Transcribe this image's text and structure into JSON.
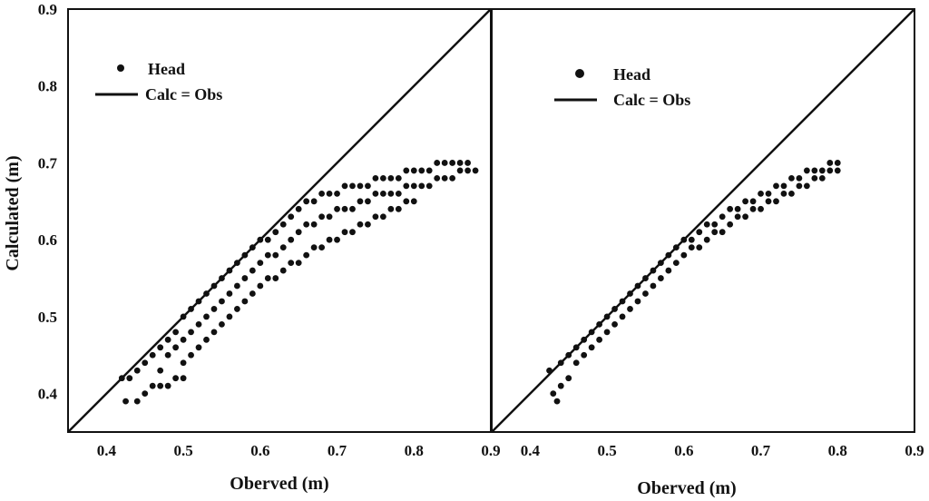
{
  "chart_data": [
    {
      "type": "scatter",
      "panel": "left",
      "xlabel": "Oberved (m)",
      "ylabel": "Calculated (m)",
      "xlim": [
        0.35,
        0.9
      ],
      "ylim": [
        0.35,
        0.9
      ],
      "xticks": [
        "0.4",
        "0.5",
        "0.6",
        "0.7",
        "0.8",
        "0.9"
      ],
      "yticks": [
        "0.4",
        "0.5",
        "0.6",
        "0.7",
        "0.8",
        "0.9"
      ],
      "legend": {
        "position": "top-left",
        "entries": [
          "Head",
          "Calc = Obs"
        ]
      },
      "series": [
        {
          "name": "Head",
          "kind": "points",
          "color": "#111111",
          "points": [
            [
              0.42,
              0.42
            ],
            [
              0.425,
              0.39
            ],
            [
              0.43,
              0.42
            ],
            [
              0.44,
              0.43
            ],
            [
              0.44,
              0.39
            ],
            [
              0.45,
              0.44
            ],
            [
              0.45,
              0.4
            ],
            [
              0.46,
              0.45
            ],
            [
              0.46,
              0.41
            ],
            [
              0.47,
              0.46
            ],
            [
              0.47,
              0.43
            ],
            [
              0.47,
              0.41
            ],
            [
              0.48,
              0.47
            ],
            [
              0.48,
              0.45
            ],
            [
              0.48,
              0.41
            ],
            [
              0.49,
              0.48
            ],
            [
              0.49,
              0.46
            ],
            [
              0.49,
              0.42
            ],
            [
              0.5,
              0.5
            ],
            [
              0.5,
              0.47
            ],
            [
              0.5,
              0.44
            ],
            [
              0.5,
              0.42
            ],
            [
              0.51,
              0.51
            ],
            [
              0.51,
              0.48
            ],
            [
              0.51,
              0.45
            ],
            [
              0.52,
              0.52
            ],
            [
              0.52,
              0.49
            ],
            [
              0.52,
              0.46
            ],
            [
              0.53,
              0.53
            ],
            [
              0.53,
              0.5
            ],
            [
              0.53,
              0.47
            ],
            [
              0.54,
              0.54
            ],
            [
              0.54,
              0.51
            ],
            [
              0.54,
              0.48
            ],
            [
              0.55,
              0.55
            ],
            [
              0.55,
              0.52
            ],
            [
              0.55,
              0.49
            ],
            [
              0.56,
              0.56
            ],
            [
              0.56,
              0.53
            ],
            [
              0.56,
              0.5
            ],
            [
              0.57,
              0.57
            ],
            [
              0.57,
              0.54
            ],
            [
              0.57,
              0.51
            ],
            [
              0.58,
              0.58
            ],
            [
              0.58,
              0.55
            ],
            [
              0.58,
              0.52
            ],
            [
              0.59,
              0.59
            ],
            [
              0.59,
              0.56
            ],
            [
              0.59,
              0.53
            ],
            [
              0.6,
              0.6
            ],
            [
              0.6,
              0.57
            ],
            [
              0.6,
              0.54
            ],
            [
              0.61,
              0.6
            ],
            [
              0.61,
              0.58
            ],
            [
              0.61,
              0.55
            ],
            [
              0.62,
              0.61
            ],
            [
              0.62,
              0.58
            ],
            [
              0.62,
              0.55
            ],
            [
              0.63,
              0.62
            ],
            [
              0.63,
              0.59
            ],
            [
              0.63,
              0.56
            ],
            [
              0.64,
              0.63
            ],
            [
              0.64,
              0.6
            ],
            [
              0.64,
              0.57
            ],
            [
              0.65,
              0.64
            ],
            [
              0.65,
              0.61
            ],
            [
              0.65,
              0.57
            ],
            [
              0.66,
              0.65
            ],
            [
              0.66,
              0.62
            ],
            [
              0.66,
              0.58
            ],
            [
              0.67,
              0.65
            ],
            [
              0.67,
              0.62
            ],
            [
              0.67,
              0.59
            ],
            [
              0.68,
              0.66
            ],
            [
              0.68,
              0.63
            ],
            [
              0.68,
              0.59
            ],
            [
              0.69,
              0.66
            ],
            [
              0.69,
              0.63
            ],
            [
              0.69,
              0.6
            ],
            [
              0.7,
              0.66
            ],
            [
              0.7,
              0.64
            ],
            [
              0.7,
              0.6
            ],
            [
              0.71,
              0.67
            ],
            [
              0.71,
              0.64
            ],
            [
              0.71,
              0.61
            ],
            [
              0.72,
              0.67
            ],
            [
              0.72,
              0.64
            ],
            [
              0.72,
              0.61
            ],
            [
              0.73,
              0.67
            ],
            [
              0.73,
              0.65
            ],
            [
              0.73,
              0.62
            ],
            [
              0.74,
              0.67
            ],
            [
              0.74,
              0.65
            ],
            [
              0.74,
              0.62
            ],
            [
              0.75,
              0.68
            ],
            [
              0.75,
              0.66
            ],
            [
              0.75,
              0.63
            ],
            [
              0.76,
              0.68
            ],
            [
              0.76,
              0.66
            ],
            [
              0.76,
              0.63
            ],
            [
              0.77,
              0.68
            ],
            [
              0.77,
              0.66
            ],
            [
              0.77,
              0.64
            ],
            [
              0.78,
              0.68
            ],
            [
              0.78,
              0.66
            ],
            [
              0.78,
              0.64
            ],
            [
              0.79,
              0.69
            ],
            [
              0.79,
              0.67
            ],
            [
              0.79,
              0.65
            ],
            [
              0.8,
              0.69
            ],
            [
              0.8,
              0.67
            ],
            [
              0.8,
              0.65
            ],
            [
              0.81,
              0.69
            ],
            [
              0.81,
              0.67
            ],
            [
              0.82,
              0.69
            ],
            [
              0.82,
              0.67
            ],
            [
              0.83,
              0.7
            ],
            [
              0.83,
              0.68
            ],
            [
              0.84,
              0.7
            ],
            [
              0.84,
              0.68
            ],
            [
              0.85,
              0.7
            ],
            [
              0.85,
              0.68
            ],
            [
              0.86,
              0.7
            ],
            [
              0.86,
              0.69
            ],
            [
              0.87,
              0.7
            ],
            [
              0.87,
              0.69
            ],
            [
              0.88,
              0.69
            ]
          ]
        },
        {
          "name": "Calc = Obs",
          "kind": "line",
          "color": "#111111",
          "points": [
            [
              0.35,
              0.35
            ],
            [
              0.9,
              0.9
            ]
          ]
        }
      ]
    },
    {
      "type": "scatter",
      "panel": "right",
      "xlabel": "Oberved (m)",
      "ylabel": "",
      "xlim": [
        0.35,
        0.9
      ],
      "ylim": [
        0.35,
        0.9
      ],
      "xticks": [
        "0.4",
        "0.5",
        "0.6",
        "0.7",
        "0.8",
        "0.9"
      ],
      "legend": {
        "position": "top-left",
        "entries": [
          "Head",
          "Calc = Obs"
        ]
      },
      "series": [
        {
          "name": "Head",
          "kind": "points",
          "color": "#111111",
          "points": [
            [
              0.425,
              0.43
            ],
            [
              0.43,
              0.4
            ],
            [
              0.435,
              0.39
            ],
            [
              0.44,
              0.44
            ],
            [
              0.44,
              0.41
            ],
            [
              0.45,
              0.45
            ],
            [
              0.45,
              0.42
            ],
            [
              0.46,
              0.46
            ],
            [
              0.46,
              0.44
            ],
            [
              0.47,
              0.47
            ],
            [
              0.47,
              0.45
            ],
            [
              0.48,
              0.48
            ],
            [
              0.48,
              0.46
            ],
            [
              0.49,
              0.49
            ],
            [
              0.49,
              0.47
            ],
            [
              0.5,
              0.5
            ],
            [
              0.5,
              0.48
            ],
            [
              0.51,
              0.51
            ],
            [
              0.51,
              0.49
            ],
            [
              0.52,
              0.52
            ],
            [
              0.52,
              0.5
            ],
            [
              0.53,
              0.53
            ],
            [
              0.53,
              0.51
            ],
            [
              0.54,
              0.54
            ],
            [
              0.54,
              0.52
            ],
            [
              0.55,
              0.55
            ],
            [
              0.55,
              0.53
            ],
            [
              0.56,
              0.56
            ],
            [
              0.56,
              0.54
            ],
            [
              0.57,
              0.57
            ],
            [
              0.57,
              0.55
            ],
            [
              0.58,
              0.58
            ],
            [
              0.58,
              0.56
            ],
            [
              0.59,
              0.59
            ],
            [
              0.59,
              0.57
            ],
            [
              0.6,
              0.6
            ],
            [
              0.6,
              0.58
            ],
            [
              0.61,
              0.6
            ],
            [
              0.61,
              0.59
            ],
            [
              0.62,
              0.61
            ],
            [
              0.62,
              0.59
            ],
            [
              0.63,
              0.62
            ],
            [
              0.63,
              0.6
            ],
            [
              0.64,
              0.62
            ],
            [
              0.64,
              0.61
            ],
            [
              0.65,
              0.63
            ],
            [
              0.65,
              0.61
            ],
            [
              0.66,
              0.64
            ],
            [
              0.66,
              0.62
            ],
            [
              0.67,
              0.64
            ],
            [
              0.67,
              0.63
            ],
            [
              0.68,
              0.65
            ],
            [
              0.68,
              0.63
            ],
            [
              0.69,
              0.65
            ],
            [
              0.69,
              0.64
            ],
            [
              0.7,
              0.66
            ],
            [
              0.7,
              0.64
            ],
            [
              0.71,
              0.66
            ],
            [
              0.71,
              0.65
            ],
            [
              0.72,
              0.67
            ],
            [
              0.72,
              0.65
            ],
            [
              0.73,
              0.67
            ],
            [
              0.73,
              0.66
            ],
            [
              0.74,
              0.68
            ],
            [
              0.74,
              0.66
            ],
            [
              0.75,
              0.68
            ],
            [
              0.75,
              0.67
            ],
            [
              0.76,
              0.69
            ],
            [
              0.76,
              0.67
            ],
            [
              0.77,
              0.69
            ],
            [
              0.77,
              0.68
            ],
            [
              0.78,
              0.69
            ],
            [
              0.78,
              0.68
            ],
            [
              0.79,
              0.7
            ],
            [
              0.79,
              0.69
            ],
            [
              0.8,
              0.7
            ],
            [
              0.8,
              0.69
            ]
          ]
        },
        {
          "name": "Calc = Obs",
          "kind": "line",
          "color": "#111111",
          "points": [
            [
              0.35,
              0.35
            ],
            [
              0.9,
              0.9
            ]
          ]
        }
      ]
    }
  ]
}
